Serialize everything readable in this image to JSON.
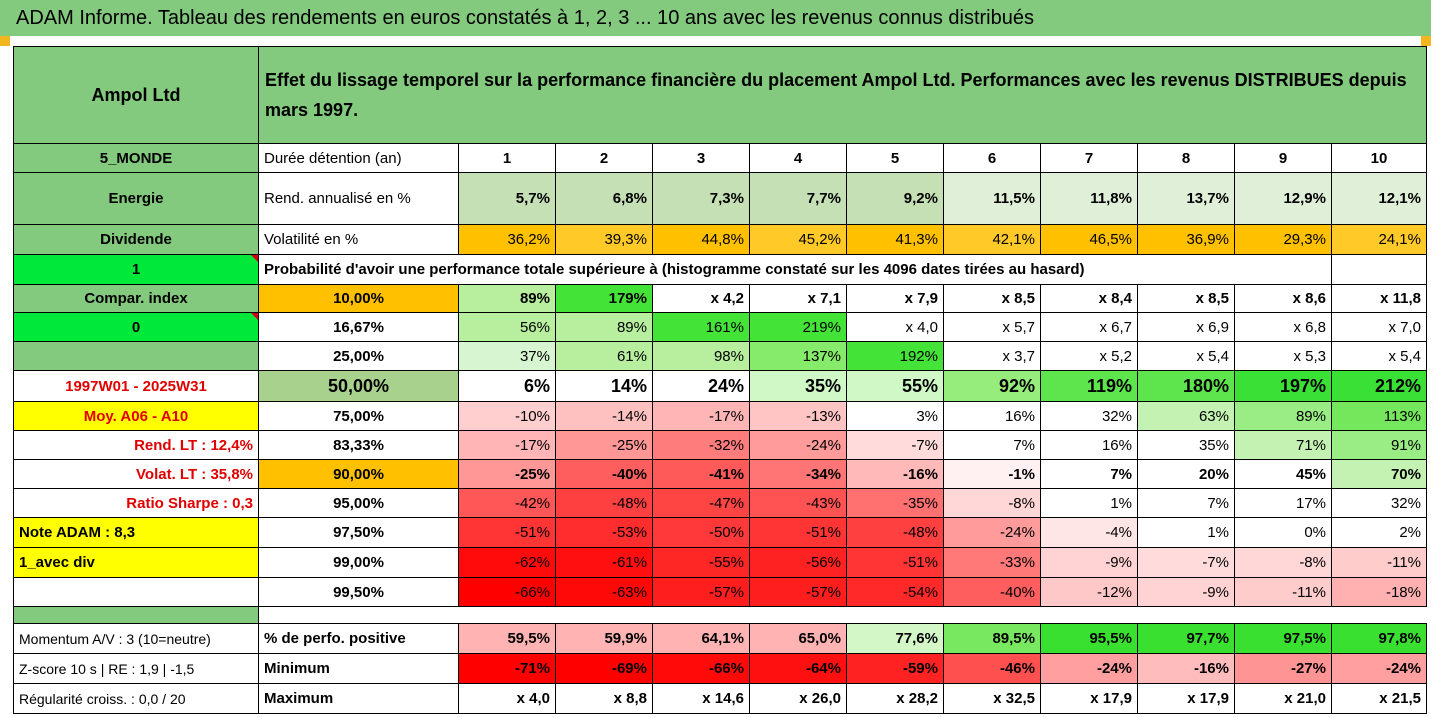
{
  "title": "ADAM Informe. Tableau des rendements en euros constatés à 1, 2, 3 ... 10 ans avec les revenus connus distribués",
  "header": {
    "name": "Ampol Ltd",
    "description": "Effet du lissage temporel sur la performance financière du placement Ampol Ltd. Performances avec les revenus DISTRIBUES depuis mars 1997."
  },
  "colors": {
    "header_green": "#83c97e",
    "light_green": "#c5e0b4",
    "orange": "#ffc000",
    "yellow": "#ffff00",
    "bright_green": "#00e83a",
    "red_text": "#e00000"
  },
  "years": [
    "1",
    "2",
    "3",
    "4",
    "5",
    "6",
    "7",
    "8",
    "9",
    "10"
  ],
  "info_rows": [
    {
      "side": "5_MONDE",
      "label": "Durée détention (an)",
      "values": [
        "1",
        "2",
        "3",
        "4",
        "5",
        "6",
        "7",
        "8",
        "9",
        "10"
      ]
    },
    {
      "side": "Energie",
      "label": "Rend. annualisé en %",
      "values": [
        "5,7%",
        "6,8%",
        "7,3%",
        "7,7%",
        "9,2%",
        "11,5%",
        "11,8%",
        "13,7%",
        "12,9%",
        "12,1%"
      ]
    },
    {
      "side": "Dividende",
      "label": "Volatilité en %",
      "values": [
        "36,2%",
        "39,3%",
        "44,8%",
        "45,2%",
        "41,3%",
        "42,1%",
        "46,5%",
        "36,9%",
        "29,3%",
        "24,1%"
      ]
    }
  ],
  "probability_row": {
    "side": "1",
    "text": "Probabilité d'avoir une performance totale supérieure à (histogramme constaté sur les 4096 dates tirées au hasard)"
  },
  "percentile_rows": [
    {
      "side": "Compar. index",
      "pct": "10,00%",
      "values": [
        "89%",
        "179%",
        "x 4,2",
        "x 7,1",
        "x 7,9",
        "x 8,5",
        "x 8,4",
        "x 8,5",
        "x 8,6",
        "x 11,8"
      ]
    },
    {
      "side": "0",
      "pct": "16,67%",
      "values": [
        "56%",
        "89%",
        "161%",
        "219%",
        "x 4,0",
        "x 5,7",
        "x 6,7",
        "x 6,9",
        "x 6,8",
        "x 7,0"
      ]
    },
    {
      "side": "",
      "pct": "25,00%",
      "values": [
        "37%",
        "61%",
        "98%",
        "137%",
        "192%",
        "x 3,7",
        "x 5,2",
        "x 5,4",
        "x 5,3",
        "x 5,4"
      ]
    },
    {
      "side": "1997W01 - 2025W31",
      "pct": "50,00%",
      "values": [
        "6%",
        "14%",
        "24%",
        "35%",
        "55%",
        "92%",
        "119%",
        "180%",
        "197%",
        "212%"
      ]
    },
    {
      "side": "Moy. A06 - A10",
      "pct": "75,00%",
      "values": [
        "-10%",
        "-14%",
        "-17%",
        "-13%",
        "3%",
        "16%",
        "32%",
        "63%",
        "89%",
        "113%"
      ]
    },
    {
      "side": "Rend. LT :   12,4%",
      "pct": "83,33%",
      "values": [
        "-17%",
        "-25%",
        "-32%",
        "-24%",
        "-7%",
        "7%",
        "16%",
        "35%",
        "71%",
        "91%"
      ]
    },
    {
      "side": "Volat. LT :   35,8%",
      "pct": "90,00%",
      "values": [
        "-25%",
        "-40%",
        "-41%",
        "-34%",
        "-16%",
        "-1%",
        "7%",
        "20%",
        "45%",
        "70%"
      ]
    },
    {
      "side": "Ratio Sharpe :   0,3",
      "pct": "95,00%",
      "values": [
        "-42%",
        "-48%",
        "-47%",
        "-43%",
        "-35%",
        "-8%",
        "1%",
        "7%",
        "17%",
        "32%"
      ]
    },
    {
      "side": "Note ADAM : 8,3",
      "pct": "97,50%",
      "values": [
        "-51%",
        "-53%",
        "-50%",
        "-51%",
        "-48%",
        "-24%",
        "-4%",
        "1%",
        "0%",
        "2%"
      ]
    },
    {
      "side": "1_avec div",
      "pct": "99,00%",
      "values": [
        "-62%",
        "-61%",
        "-55%",
        "-56%",
        "-51%",
        "-33%",
        "-9%",
        "-7%",
        "-8%",
        "-11%"
      ]
    },
    {
      "side": "",
      "pct": "99,50%",
      "values": [
        "-66%",
        "-63%",
        "-57%",
        "-57%",
        "-54%",
        "-40%",
        "-12%",
        "-9%",
        "-11%",
        "-18%"
      ]
    }
  ],
  "stat_rows": [
    {
      "side": "Momentum A/V : 3 (10=neutre)",
      "label": "% de perfo. positive",
      "values": [
        "59,5%",
        "59,9%",
        "64,1%",
        "65,0%",
        "77,6%",
        "89,5%",
        "95,5%",
        "97,7%",
        "97,5%",
        "97,8%"
      ]
    },
    {
      "side": "Z-score 10 s  | RE : 1,9 | -1,5",
      "label": "Minimum",
      "values": [
        "-71%",
        "-69%",
        "-66%",
        "-64%",
        "-59%",
        "-46%",
        "-24%",
        "-16%",
        "-27%",
        "-24%"
      ]
    },
    {
      "side": "Régularité croiss. : 0,0 / 20",
      "label": "Maximum",
      "values": [
        "x 4,0",
        "x 8,8",
        "x 14,6",
        "x 26,0",
        "x 28,2",
        "x 32,5",
        "x 17,9",
        "x 17,9",
        "x 21,0",
        "x 21,5"
      ]
    }
  ]
}
